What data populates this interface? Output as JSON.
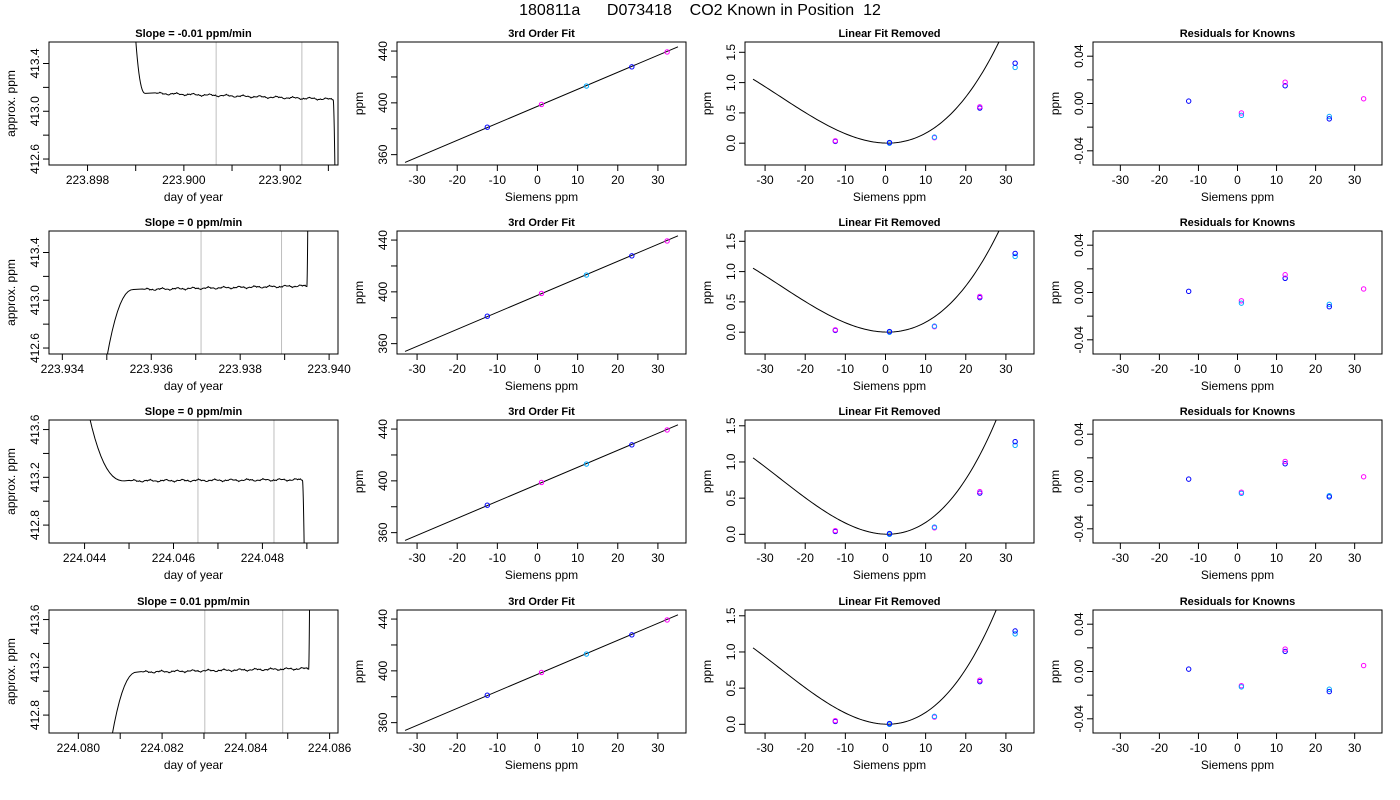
{
  "header": {
    "run_id": "180811a",
    "tank_id": "D073418",
    "description": "CO2 Known in Position  12"
  },
  "colors": {
    "curve": "#000000",
    "point_a": "#0000ff",
    "point_b": "#ff00ff",
    "point_c": "#00aaff",
    "window_line": "#bebebe",
    "point_red": "#ff0000"
  },
  "chart_data": [
    {
      "row": 1,
      "type": "line",
      "title": "Slope =  -0.01  ppm/min",
      "xlabel": "day of year",
      "ylabel": "approx. ppm",
      "xlim": [
        223.8972,
        223.9032
      ],
      "ylim": [
        412.55,
        413.58
      ],
      "xticks": [
        223.898,
        223.9,
        223.902
      ],
      "xtick_labels": [
        "223.898",
        "223.900",
        "223.902"
      ],
      "xticks_minor": [
        223.899,
        223.901,
        223.903
      ],
      "yticks": [
        412.6,
        413.0,
        413.4
      ],
      "ytick_labels": [
        "412.6",
        "413.0",
        "413.4"
      ],
      "yticks_minor": [
        412.8,
        413.2
      ],
      "window_lines": [
        223.90067,
        223.90245
      ],
      "trace": {
        "start": 223.899,
        "shoulder": 223.8992,
        "plateau_start": 223.8994,
        "plateau_end": 223.9031,
        "level_start": 413.15,
        "level_end": 413.1,
        "edge_start": 413.6,
        "edge_end": 412.52,
        "fall": true,
        "rise": false
      }
    },
    {
      "row": 1,
      "type": "scatter",
      "title": "3rd Order Fit",
      "xlabel": "Siemens ppm",
      "ylabel": "ppm",
      "xlim": [
        -35,
        37
      ],
      "ylim": [
        352,
        447
      ],
      "xticks": [
        -30,
        -20,
        -10,
        0,
        10,
        20,
        30
      ],
      "xtick_labels": [
        "-30",
        "-20",
        "-10",
        "0",
        "10",
        "20",
        "30"
      ],
      "yticks": [
        360,
        400,
        440
      ],
      "ytick_labels": [
        "360",
        "400",
        "440"
      ],
      "yticks_minor": [
        380,
        420
      ],
      "x": [
        -12.5,
        1.0,
        12.2,
        23.5,
        32.3
      ],
      "y": [
        381.2,
        398.8,
        413.0,
        427.8,
        439.3
      ],
      "fit": {
        "x": [
          -33,
          35
        ],
        "y": [
          354.0,
          443.3
        ]
      }
    },
    {
      "row": 1,
      "type": "scatter",
      "title": "Linear Fit Removed",
      "xlabel": "Siemens ppm",
      "ylabel": "ppm",
      "xlim": [
        -35,
        37
      ],
      "ylim": [
        -0.36,
        1.67
      ],
      "xticks": [
        -30,
        -20,
        -10,
        0,
        10,
        20,
        30
      ],
      "xtick_labels": [
        "-30",
        "-20",
        "-10",
        "0",
        "10",
        "20",
        "30"
      ],
      "yticks": [
        0.0,
        0.5,
        1.0,
        1.5
      ],
      "ytick_labels": [
        "0.0",
        "0.5",
        "1.0",
        "1.5"
      ],
      "x": [
        -12.5,
        -12.5,
        1.0,
        1.0,
        12.2,
        12.2,
        23.5,
        23.5,
        32.3,
        32.3
      ],
      "y": [
        0.03,
        0.04,
        0.0,
        0.01,
        0.09,
        0.1,
        0.58,
        0.6,
        1.25,
        1.32
      ],
      "fit": {
        "a": 2e-05,
        "b": 0.00158,
        "c": -0.0016,
        "d": 0.002
      }
    },
    {
      "row": 1,
      "type": "scatter",
      "title": "Residuals for Knowns",
      "xlabel": "Siemens ppm",
      "ylabel": "ppm",
      "xlim": [
        -37,
        37
      ],
      "ylim": [
        -0.052,
        0.052
      ],
      "xticks": [
        -30,
        -20,
        -10,
        0,
        10,
        20,
        30
      ],
      "xtick_labels": [
        "-30",
        "-20",
        "-10",
        "0",
        "10",
        "20",
        "30"
      ],
      "yticks": [
        -0.04,
        0.0,
        0.04
      ],
      "ytick_labels": [
        "-0.04",
        "0.00",
        "0.04"
      ],
      "yticks_minor": [
        -0.02,
        0.02
      ],
      "x": [
        -12.5,
        1.0,
        1.0,
        12.2,
        12.2,
        23.5,
        23.5,
        32.3
      ],
      "y": [
        0.002,
        -0.008,
        -0.01,
        0.015,
        0.018,
        -0.011,
        -0.013,
        0.004
      ]
    },
    {
      "row": 2,
      "type": "line",
      "title": "Slope =  0  ppm/min",
      "xlabel": "day of year",
      "ylabel": "approx. ppm",
      "xlim": [
        223.9337,
        223.9402
      ],
      "ylim": [
        412.55,
        413.58
      ],
      "xticks": [
        223.934,
        223.936,
        223.938,
        223.94
      ],
      "xtick_labels": [
        "223.934",
        "223.936",
        "223.938",
        "223.940"
      ],
      "xticks_minor": [
        223.935,
        223.937,
        223.939
      ],
      "yticks": [
        412.6,
        413.0,
        413.4
      ],
      "ytick_labels": [
        "412.6",
        "413.0",
        "413.4"
      ],
      "yticks_minor": [
        412.8,
        413.2
      ],
      "window_lines": [
        223.93712,
        223.93893
      ],
      "trace": {
        "start": 223.935,
        "shoulder": 223.9356,
        "plateau_start": 223.9358,
        "plateau_end": 223.9395,
        "level_start": 413.09,
        "level_end": 413.12,
        "edge_start": 412.52,
        "edge_end": 413.6,
        "fall": false,
        "rise": true
      }
    },
    {
      "row": 2,
      "type": "scatter",
      "title": "3rd Order Fit",
      "xlabel": "Siemens ppm",
      "ylabel": "ppm",
      "xlim": [
        -35,
        37
      ],
      "ylim": [
        352,
        447
      ],
      "xticks": [
        -30,
        -20,
        -10,
        0,
        10,
        20,
        30
      ],
      "xtick_labels": [
        "-30",
        "-20",
        "-10",
        "0",
        "10",
        "20",
        "30"
      ],
      "yticks": [
        360,
        400,
        440
      ],
      "ytick_labels": [
        "360",
        "400",
        "440"
      ],
      "yticks_minor": [
        380,
        420
      ],
      "x": [
        -12.5,
        1.0,
        12.2,
        23.5,
        32.3
      ],
      "y": [
        381.2,
        398.8,
        413.0,
        427.8,
        439.3
      ],
      "fit": {
        "x": [
          -33,
          35
        ],
        "y": [
          354.0,
          443.3
        ]
      }
    },
    {
      "row": 2,
      "type": "scatter",
      "title": "Linear Fit Removed",
      "xlabel": "Siemens ppm",
      "ylabel": "ppm",
      "xlim": [
        -35,
        37
      ],
      "ylim": [
        -0.36,
        1.67
      ],
      "xticks": [
        -30,
        -20,
        -10,
        0,
        10,
        20,
        30
      ],
      "xtick_labels": [
        "-30",
        "-20",
        "-10",
        "0",
        "10",
        "20",
        "30"
      ],
      "yticks": [
        0.0,
        0.5,
        1.0,
        1.5
      ],
      "ytick_labels": [
        "0.0",
        "0.5",
        "1.0",
        "1.5"
      ],
      "x": [
        -12.5,
        -12.5,
        1.0,
        1.0,
        12.2,
        12.2,
        23.5,
        23.5,
        32.3,
        32.3
      ],
      "y": [
        0.03,
        0.04,
        0.0,
        0.01,
        0.09,
        0.1,
        0.57,
        0.59,
        1.25,
        1.3
      ],
      "fit": {
        "a": 2e-05,
        "b": 0.00158,
        "c": -0.0016,
        "d": 0.002
      }
    },
    {
      "row": 2,
      "type": "scatter",
      "title": "Residuals for Knowns",
      "xlabel": "Siemens ppm",
      "ylabel": "ppm",
      "xlim": [
        -37,
        37
      ],
      "ylim": [
        -0.052,
        0.052
      ],
      "xticks": [
        -30,
        -20,
        -10,
        0,
        10,
        20,
        30
      ],
      "xtick_labels": [
        "-30",
        "-20",
        "-10",
        "0",
        "10",
        "20",
        "30"
      ],
      "yticks": [
        -0.04,
        0.0,
        0.04
      ],
      "ytick_labels": [
        "-0.04",
        "0.00",
        "0.04"
      ],
      "yticks_minor": [
        -0.02,
        0.02
      ],
      "x": [
        -12.5,
        1.0,
        1.0,
        12.2,
        12.2,
        23.5,
        23.5,
        32.3
      ],
      "y": [
        0.001,
        -0.007,
        -0.009,
        0.012,
        0.015,
        -0.01,
        -0.012,
        0.003
      ]
    },
    {
      "row": 3,
      "type": "line",
      "title": "Slope =  0  ppm/min",
      "xlabel": "day of year",
      "ylabel": "approx. ppm",
      "xlim": [
        224.0432,
        224.0497
      ],
      "ylim": [
        412.65,
        413.68
      ],
      "xticks": [
        224.044,
        224.046,
        224.048
      ],
      "xtick_labels": [
        "224.044",
        "224.046",
        "224.048"
      ],
      "xticks_minor": [
        224.045,
        224.047,
        224.049
      ],
      "yticks": [
        412.8,
        413.2,
        413.6
      ],
      "ytick_labels": [
        "412.8",
        "413.2",
        "413.6"
      ],
      "yticks_minor": [
        413.0,
        413.4
      ],
      "window_lines": [
        224.04655,
        224.04826
      ],
      "trace": {
        "start": 224.0441,
        "shoulder": 224.0449,
        "plateau_start": 224.045,
        "plateau_end": 224.0489,
        "level_start": 413.17,
        "level_end": 413.18,
        "edge_start": 413.72,
        "edge_end": 412.62,
        "fall": true,
        "rise": false
      }
    },
    {
      "row": 3,
      "type": "scatter",
      "title": "3rd Order Fit",
      "xlabel": "Siemens ppm",
      "ylabel": "ppm",
      "xlim": [
        -35,
        37
      ],
      "ylim": [
        352,
        447
      ],
      "xticks": [
        -30,
        -20,
        -10,
        0,
        10,
        20,
        30
      ],
      "xtick_labels": [
        "-30",
        "-20",
        "-10",
        "0",
        "10",
        "20",
        "30"
      ],
      "yticks": [
        360,
        400,
        440
      ],
      "ytick_labels": [
        "360",
        "400",
        "440"
      ],
      "yticks_minor": [
        380,
        420
      ],
      "x": [
        -12.5,
        1.0,
        12.2,
        23.5,
        32.3
      ],
      "y": [
        381.2,
        398.8,
        413.0,
        427.8,
        439.3
      ],
      "fit": {
        "x": [
          -33,
          35
        ],
        "y": [
          354.0,
          443.3
        ]
      }
    },
    {
      "row": 3,
      "type": "scatter",
      "title": "Linear Fit Removed",
      "xlabel": "Siemens ppm",
      "ylabel": "ppm",
      "xlim": [
        -35,
        37
      ],
      "ylim": [
        -0.12,
        1.58
      ],
      "xticks": [
        -30,
        -20,
        -10,
        0,
        10,
        20,
        30
      ],
      "xtick_labels": [
        "-30",
        "-20",
        "-10",
        "0",
        "10",
        "20",
        "30"
      ],
      "yticks": [
        0.0,
        0.5,
        1.0,
        1.5
      ],
      "ytick_labels": [
        "0.0",
        "0.5",
        "1.0",
        "1.5"
      ],
      "x": [
        -12.5,
        -12.5,
        1.0,
        1.0,
        12.2,
        12.2,
        23.5,
        23.5,
        32.3,
        32.3
      ],
      "y": [
        0.04,
        0.05,
        0.0,
        0.01,
        0.09,
        0.1,
        0.57,
        0.59,
        1.23,
        1.28
      ],
      "fit": {
        "a": 2e-05,
        "b": 0.00158,
        "c": -0.0016,
        "d": 0.002
      }
    },
    {
      "row": 3,
      "type": "scatter",
      "title": "Residuals for Knowns",
      "xlabel": "Siemens ppm",
      "ylabel": "ppm",
      "xlim": [
        -37,
        37
      ],
      "ylim": [
        -0.052,
        0.052
      ],
      "xticks": [
        -30,
        -20,
        -10,
        0,
        10,
        20,
        30
      ],
      "xtick_labels": [
        "-30",
        "-20",
        "-10",
        "0",
        "10",
        "20",
        "30"
      ],
      "yticks": [
        -0.04,
        0.0,
        0.04
      ],
      "ytick_labels": [
        "-0.04",
        "0.00",
        "0.04"
      ],
      "yticks_minor": [
        -0.02,
        0.02
      ],
      "x": [
        -12.5,
        1.0,
        1.0,
        12.2,
        12.2,
        23.5,
        23.5,
        32.3
      ],
      "y": [
        0.002,
        -0.009,
        -0.01,
        0.015,
        0.017,
        -0.012,
        -0.013,
        0.004
      ]
    },
    {
      "row": 4,
      "type": "line",
      "title": "Slope =  0.01  ppm/min",
      "xlabel": "day of year",
      "ylabel": "approx. ppm",
      "xlim": [
        224.0793,
        224.0862
      ],
      "ylim": [
        412.65,
        413.68
      ],
      "xticks": [
        224.08,
        224.082,
        224.084,
        224.086
      ],
      "xtick_labels": [
        "224.080",
        "224.082",
        "224.084",
        "224.086"
      ],
      "xticks_minor": [
        224.081,
        224.083,
        224.085
      ],
      "yticks": [
        412.8,
        413.2,
        413.6
      ],
      "ytick_labels": [
        "412.8",
        "413.2",
        "413.6"
      ],
      "yticks_minor": [
        413.0,
        413.4
      ],
      "window_lines": [
        224.08302,
        224.08488
      ],
      "trace": {
        "start": 224.0808,
        "shoulder": 224.0814,
        "plateau_start": 224.0815,
        "plateau_end": 224.0855,
        "level_start": 413.16,
        "level_end": 413.19,
        "edge_start": 412.62,
        "edge_end": 413.72,
        "fall": false,
        "rise": true
      }
    },
    {
      "row": 4,
      "type": "scatter",
      "title": "3rd Order Fit",
      "xlabel": "Siemens ppm",
      "ylabel": "ppm",
      "xlim": [
        -35,
        37
      ],
      "ylim": [
        352,
        447
      ],
      "xticks": [
        -30,
        -20,
        -10,
        0,
        10,
        20,
        30
      ],
      "xtick_labels": [
        "-30",
        "-20",
        "-10",
        "0",
        "10",
        "20",
        "30"
      ],
      "yticks": [
        360,
        400,
        440
      ],
      "ytick_labels": [
        "360",
        "400",
        "440"
      ],
      "yticks_minor": [
        380,
        420
      ],
      "x": [
        -12.5,
        1.0,
        12.2,
        23.5,
        32.3
      ],
      "y": [
        381.2,
        398.8,
        413.0,
        427.8,
        439.3
      ],
      "fit": {
        "x": [
          -33,
          35
        ],
        "y": [
          354.0,
          443.3
        ]
      }
    },
    {
      "row": 4,
      "type": "scatter",
      "title": "Linear Fit Removed",
      "xlabel": "Siemens ppm",
      "ylabel": "ppm",
      "xlim": [
        -35,
        37
      ],
      "ylim": [
        -0.12,
        1.58
      ],
      "xticks": [
        -30,
        -20,
        -10,
        0,
        10,
        20,
        30
      ],
      "xtick_labels": [
        "-30",
        "-20",
        "-10",
        "0",
        "10",
        "20",
        "30"
      ],
      "yticks": [
        0.0,
        0.5,
        1.0,
        1.5
      ],
      "ytick_labels": [
        "0.0",
        "0.5",
        "1.0",
        "1.5"
      ],
      "x": [
        -12.5,
        -12.5,
        1.0,
        1.0,
        12.2,
        12.2,
        23.5,
        23.5,
        32.3,
        32.3
      ],
      "y": [
        0.04,
        0.05,
        0.0,
        0.01,
        0.1,
        0.11,
        0.59,
        0.61,
        1.25,
        1.29
      ],
      "fit": {
        "a": 2e-05,
        "b": 0.00158,
        "c": -0.0016,
        "d": 0.002
      }
    },
    {
      "row": 4,
      "type": "scatter",
      "title": "Residuals for Knowns",
      "xlabel": "Siemens ppm",
      "ylabel": "ppm",
      "xlim": [
        -37,
        37
      ],
      "ylim": [
        -0.052,
        0.052
      ],
      "xticks": [
        -30,
        -20,
        -10,
        0,
        10,
        20,
        30
      ],
      "xtick_labels": [
        "-30",
        "-20",
        "-10",
        "0",
        "10",
        "20",
        "30"
      ],
      "yticks": [
        -0.04,
        0.0,
        0.04
      ],
      "ytick_labels": [
        "-0.04",
        "0.00",
        "0.04"
      ],
      "yticks_minor": [
        -0.02,
        0.02
      ],
      "x": [
        -12.5,
        1.0,
        1.0,
        12.2,
        12.2,
        23.5,
        23.5,
        32.3
      ],
      "y": [
        0.002,
        -0.012,
        -0.013,
        0.017,
        0.019,
        -0.015,
        -0.017,
        0.005
      ]
    }
  ]
}
